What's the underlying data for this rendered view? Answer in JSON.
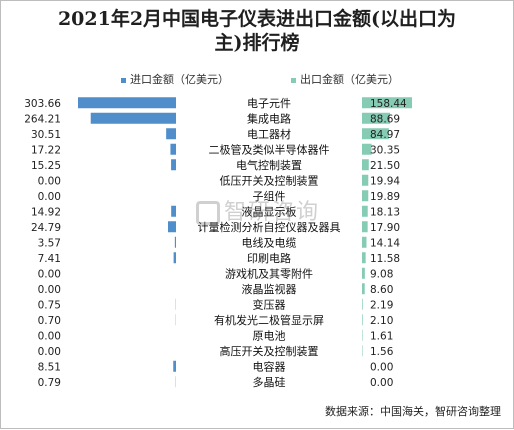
{
  "chart_data": {
    "type": "bar",
    "title_line1": "2021年2月中国电子仪表进出口金额(以出口为",
    "title_line2": "主)排行榜",
    "series": [
      {
        "name": "进口金额（亿美元）",
        "color": "#4f8ecb",
        "values": [
          303.66,
          264.21,
          30.51,
          17.22,
          15.25,
          0.0,
          0.0,
          14.92,
          24.79,
          3.57,
          7.41,
          0.0,
          0.0,
          0.75,
          0.7,
          0.0,
          0.0,
          8.51,
          0.79
        ]
      },
      {
        "name": "出口金额（亿美元）",
        "color": "#86cbb4",
        "values": [
          158.44,
          88.69,
          84.97,
          30.35,
          21.5,
          19.94,
          19.89,
          18.13,
          17.9,
          14.14,
          11.58,
          9.08,
          8.6,
          2.19,
          2.1,
          1.61,
          1.56,
          0.0,
          0.0
        ]
      }
    ],
    "import_labels": [
      "303.66",
      "264.21",
      "30.51",
      "17.22",
      "15.25",
      "0.00",
      "0.00",
      "14.92",
      "24.79",
      "3.57",
      "7.41",
      "0.00",
      "0.00",
      "0.75",
      "0.70",
      "0.00",
      "0.00",
      "8.51",
      "0.79"
    ],
    "export_labels": [
      "158.44",
      "88.69",
      "84.97",
      "30.35",
      "21.50",
      "19.94",
      "19.89",
      "18.13",
      "17.90",
      "14.14",
      "11.58",
      "9.08",
      "8.60",
      "2.19",
      "2.10",
      "1.61",
      "1.56",
      "0.00",
      "0.00"
    ],
    "categories": [
      "电子元件",
      "集成电路",
      "电工器材",
      "二极管及类似半导体器件",
      "电气控制装置",
      "低压开关及控制装置",
      "子组件",
      "液晶显示板",
      "计量检测分析自控仪器及器具",
      "电线及电缆",
      "印刷电路",
      "游戏机及其零附件",
      "液晶监视器",
      "变压器",
      "有机发光二极管显示屏",
      "原电池",
      "高压开关及控制装置",
      "电容器",
      "多晶硅"
    ],
    "legend_position": "top"
  },
  "watermark_text": "智研咨询",
  "source": "数据来源：中国海关，智研咨询整理"
}
